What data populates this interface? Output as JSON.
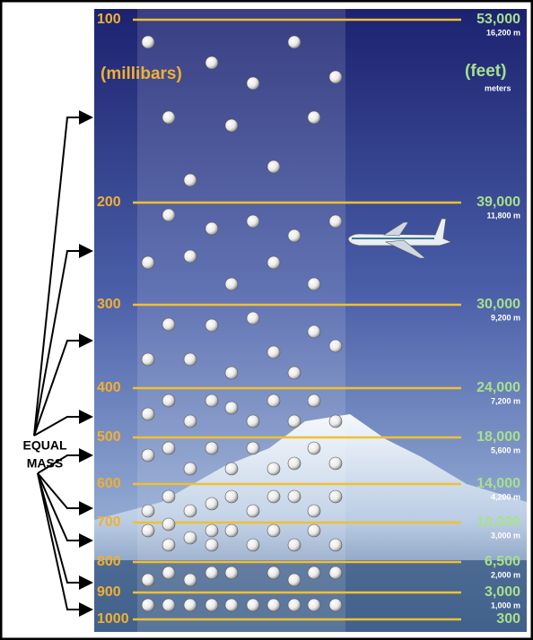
{
  "units": {
    "pressure": "(millibars)",
    "altitude": "(feet)",
    "altitude_small": "meters"
  },
  "side_label": [
    "EQUAL",
    "MASS"
  ],
  "levels": [
    {
      "pressure": "100",
      "feet": "53,000",
      "meters": "16,200 m"
    },
    {
      "pressure": "200",
      "feet": "39,000",
      "meters": "11,800 m"
    },
    {
      "pressure": "300",
      "feet": "30,000",
      "meters": "9,200 m"
    },
    {
      "pressure": "400",
      "feet": "24,000",
      "meters": "7,200 m"
    },
    {
      "pressure": "500",
      "feet": "18,000",
      "meters": "5,600 m"
    },
    {
      "pressure": "600",
      "feet": "14,000",
      "meters": "4,200 m"
    },
    {
      "pressure": "700",
      "feet": "10,000",
      "meters": "3,000 m"
    },
    {
      "pressure": "800",
      "feet": "6,500",
      "meters": "2,000 m"
    },
    {
      "pressure": "900",
      "feet": "3,000",
      "meters": "1,000 m"
    },
    {
      "pressure": "1000",
      "feet": "300"
    }
  ]
}
